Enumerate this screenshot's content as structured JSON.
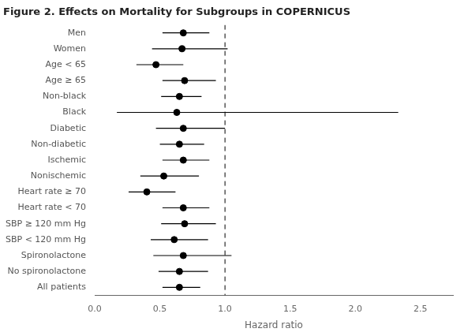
{
  "chart_data": {
    "type": "forest",
    "title": "Figure 2. Effects on Mortality for Subgroups in COPERNICUS",
    "x_label": "Hazard ratio",
    "categories": [
      "Men",
      "Women",
      "Age < 65",
      "Age ≥ 65",
      "Non-black",
      "Black",
      "Diabetic",
      "Non-diabetic",
      "Ischemic",
      "Nonischemic",
      "Heart rate ≥ 70",
      "Heart rate < 70",
      "SBP ≥ 120 mm Hg",
      "SBP < 120 mm Hg",
      "Spironolactone",
      "No spironolactone",
      "All patients"
    ],
    "values": [
      0.68,
      0.67,
      0.47,
      0.69,
      0.65,
      0.63,
      0.68,
      0.65,
      0.68,
      0.53,
      0.4,
      0.68,
      0.69,
      0.61,
      0.68,
      0.65,
      0.65
    ],
    "ci_low": [
      0.52,
      0.44,
      0.32,
      0.52,
      0.51,
      0.17,
      0.47,
      0.5,
      0.52,
      0.35,
      0.26,
      0.52,
      0.51,
      0.43,
      0.45,
      0.49,
      0.52
    ],
    "ci_high": [
      0.88,
      1.02,
      0.68,
      0.93,
      0.82,
      2.33,
      1.0,
      0.84,
      0.88,
      0.8,
      0.62,
      0.88,
      0.93,
      0.87,
      1.05,
      0.87,
      0.81
    ],
    "color": "black",
    "marker": "circle",
    "reference_line": {
      "value": 1.0,
      "line_style": "dashed",
      "color": "black"
    },
    "xlim": [
      0.0,
      2.75
    ],
    "xticks": [
      {
        "value": 0.0,
        "label": "0.0"
      },
      0.5,
      {
        "value": 1.0,
        "label": "1.0"
      },
      1.5,
      {
        "value": 2.0,
        "label": "2.0"
      },
      2.5
    ],
    "grid": false,
    "legend": false
  }
}
